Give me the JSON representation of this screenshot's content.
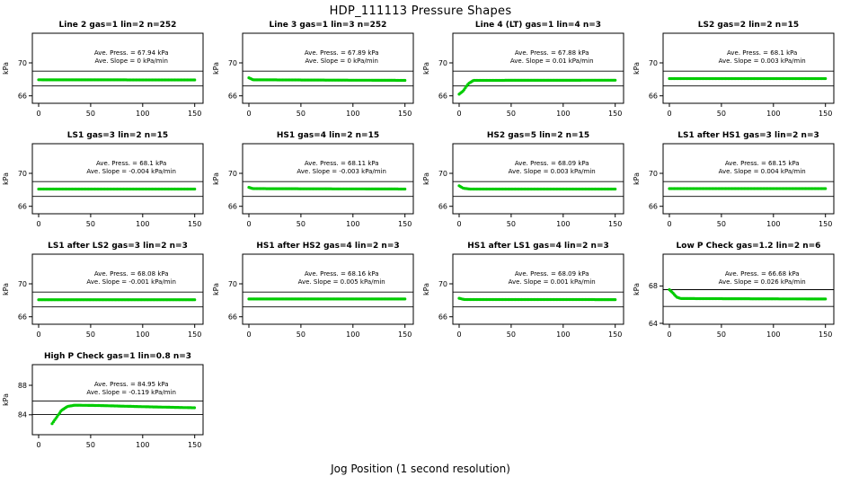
{
  "chart_data": {
    "type": "scatter",
    "title": "HDP_111113  Pressure Shapes",
    "xlabel": "Jog Position (1 second resolution)",
    "ylabel": "kPa",
    "point_color": "#00cc00",
    "point_step": 1.2,
    "xticks": [
      0,
      50,
      100,
      150
    ],
    "panels": [
      {
        "title": "Line 2 gas=1 lin=2 n=252",
        "press_label": "Ave. Press. =  67.94  kPa",
        "slope_label": "Ave. Slope =  0  kPa/min",
        "ylim": [
          65.1,
          73.6
        ],
        "yticks": [
          66,
          70
        ],
        "xlim": [
          -6,
          158
        ],
        "ref_lines": [
          69.0,
          67.2
        ],
        "keypoints": [
          [
            0,
            67.95
          ],
          [
            150,
            67.93
          ]
        ]
      },
      {
        "title": "Line 3 gas=1 lin=3 n=252",
        "press_label": "Ave. Press. =  67.89  kPa",
        "slope_label": "Ave. Slope =  0  kPa/min",
        "ylim": [
          65.1,
          73.6
        ],
        "yticks": [
          66,
          70
        ],
        "xlim": [
          -6,
          158
        ],
        "ref_lines": [
          69.0,
          67.2
        ],
        "keypoints": [
          [
            0,
            68.2
          ],
          [
            4,
            67.95
          ],
          [
            150,
            67.88
          ]
        ]
      },
      {
        "title": "Line 4 (LT) gas=1 lin=4 n=3",
        "press_label": "Ave. Press. =  67.88  kPa",
        "slope_label": "Ave. Slope =  0.01  kPa/min",
        "ylim": [
          65.1,
          73.6
        ],
        "yticks": [
          66,
          70
        ],
        "xlim": [
          -6,
          158
        ],
        "ref_lines": [
          69.0,
          67.2
        ],
        "keypoints": [
          [
            0,
            66.2
          ],
          [
            4,
            66.6
          ],
          [
            9,
            67.5
          ],
          [
            14,
            67.88
          ],
          [
            150,
            67.9
          ]
        ]
      },
      {
        "title": "LS2 gas=2 lin=2 n=15",
        "press_label": "Ave. Press. =  68.1  kPa",
        "slope_label": "Ave. Slope =  0.003  kPa/min",
        "ylim": [
          65.1,
          73.6
        ],
        "yticks": [
          66,
          70
        ],
        "xlim": [
          -6,
          158
        ],
        "ref_lines": [
          69.0,
          67.2
        ],
        "keypoints": [
          [
            0,
            68.1
          ],
          [
            150,
            68.1
          ]
        ]
      },
      {
        "title": "LS1 gas=3 lin=2 n=15",
        "press_label": "Ave. Press. =  68.1  kPa",
        "slope_label": "Ave. Slope =  -0.004  kPa/min",
        "ylim": [
          65.1,
          73.6
        ],
        "yticks": [
          66,
          70
        ],
        "xlim": [
          -6,
          158
        ],
        "ref_lines": [
          69.0,
          67.2
        ],
        "keypoints": [
          [
            0,
            68.1
          ],
          [
            150,
            68.1
          ]
        ]
      },
      {
        "title": "HS1 gas=4 lin=2 n=15",
        "press_label": "Ave. Press. =  68.11  kPa",
        "slope_label": "Ave. Slope =  -0.003  kPa/min",
        "ylim": [
          65.1,
          73.6
        ],
        "yticks": [
          66,
          70
        ],
        "xlim": [
          -6,
          158
        ],
        "ref_lines": [
          69.0,
          67.2
        ],
        "keypoints": [
          [
            0,
            68.3
          ],
          [
            4,
            68.15
          ],
          [
            150,
            68.1
          ]
        ]
      },
      {
        "title": "HS2 gas=5 lin=2 n=15",
        "press_label": "Ave. Press. =  68.09  kPa",
        "slope_label": "Ave. Slope =  0.003  kPa/min",
        "ylim": [
          65.1,
          73.6
        ],
        "yticks": [
          66,
          70
        ],
        "xlim": [
          -6,
          158
        ],
        "ref_lines": [
          69.0,
          67.2
        ],
        "keypoints": [
          [
            0,
            68.5
          ],
          [
            4,
            68.2
          ],
          [
            10,
            68.1
          ],
          [
            150,
            68.1
          ]
        ]
      },
      {
        "title": "LS1 after HS1 gas=3 lin=2 n=3",
        "press_label": "Ave. Press. =  68.15  kPa",
        "slope_label": "Ave. Slope =  0.004  kPa/min",
        "ylim": [
          65.1,
          73.6
        ],
        "yticks": [
          66,
          70
        ],
        "xlim": [
          -6,
          158
        ],
        "ref_lines": [
          69.0,
          67.2
        ],
        "keypoints": [
          [
            0,
            68.15
          ],
          [
            150,
            68.15
          ]
        ]
      },
      {
        "title": "LS1 after LS2 gas=3 lin=2 n=3",
        "press_label": "Ave. Press. =  68.08  kPa",
        "slope_label": "Ave. Slope =  -0.001  kPa/min",
        "ylim": [
          65.1,
          73.6
        ],
        "yticks": [
          66,
          70
        ],
        "xlim": [
          -6,
          158
        ],
        "ref_lines": [
          69.0,
          67.2
        ],
        "keypoints": [
          [
            0,
            68.08
          ],
          [
            150,
            68.08
          ]
        ]
      },
      {
        "title": "HS1 after HS2 gas=4 lin=2 n=3",
        "press_label": "Ave. Press. =  68.16  kPa",
        "slope_label": "Ave. Slope =  0.005  kPa/min",
        "ylim": [
          65.1,
          73.6
        ],
        "yticks": [
          66,
          70
        ],
        "xlim": [
          -6,
          158
        ],
        "ref_lines": [
          69.0,
          67.2
        ],
        "keypoints": [
          [
            0,
            68.16
          ],
          [
            150,
            68.16
          ]
        ]
      },
      {
        "title": "HS1 after LS1 gas=4 lin=2 n=3",
        "press_label": "Ave. Press. =  68.09  kPa",
        "slope_label": "Ave. Slope =  0.001  kPa/min",
        "ylim": [
          65.1,
          73.6
        ],
        "yticks": [
          66,
          70
        ],
        "xlim": [
          -6,
          158
        ],
        "ref_lines": [
          69.0,
          67.2
        ],
        "keypoints": [
          [
            0,
            68.25
          ],
          [
            5,
            68.1
          ],
          [
            150,
            68.09
          ]
        ]
      },
      {
        "title": "Low P Check gas=1.2 lin=2 n=6",
        "press_label": "Ave. Press. =  66.68  kPa",
        "slope_label": "Ave. Slope =  0.026  kPa/min",
        "ylim": [
          63.9,
          71.4
        ],
        "yticks": [
          64,
          68
        ],
        "xlim": [
          -6,
          158
        ],
        "ref_lines": [
          67.6,
          65.8
        ],
        "keypoints": [
          [
            0,
            67.6
          ],
          [
            3,
            67.3
          ],
          [
            7,
            66.8
          ],
          [
            11,
            66.65
          ],
          [
            150,
            66.6
          ]
        ]
      },
      {
        "title": "High P Check gas=1 lin=0.8 n=3",
        "press_label": "Ave. Press. =  84.95  kPa",
        "slope_label": "Ave. Slope =  -0.119  kPa/min",
        "ylim": [
          81.3,
          90.8
        ],
        "yticks": [
          84,
          88
        ],
        "xlim": [
          -6,
          158
        ],
        "ref_lines": [
          85.85,
          84.05
        ],
        "keypoints": [
          [
            13,
            82.8
          ],
          [
            17,
            83.6
          ],
          [
            22,
            84.6
          ],
          [
            28,
            85.15
          ],
          [
            35,
            85.3
          ],
          [
            60,
            85.25
          ],
          [
            100,
            85.1
          ],
          [
            150,
            84.95
          ]
        ]
      }
    ]
  }
}
